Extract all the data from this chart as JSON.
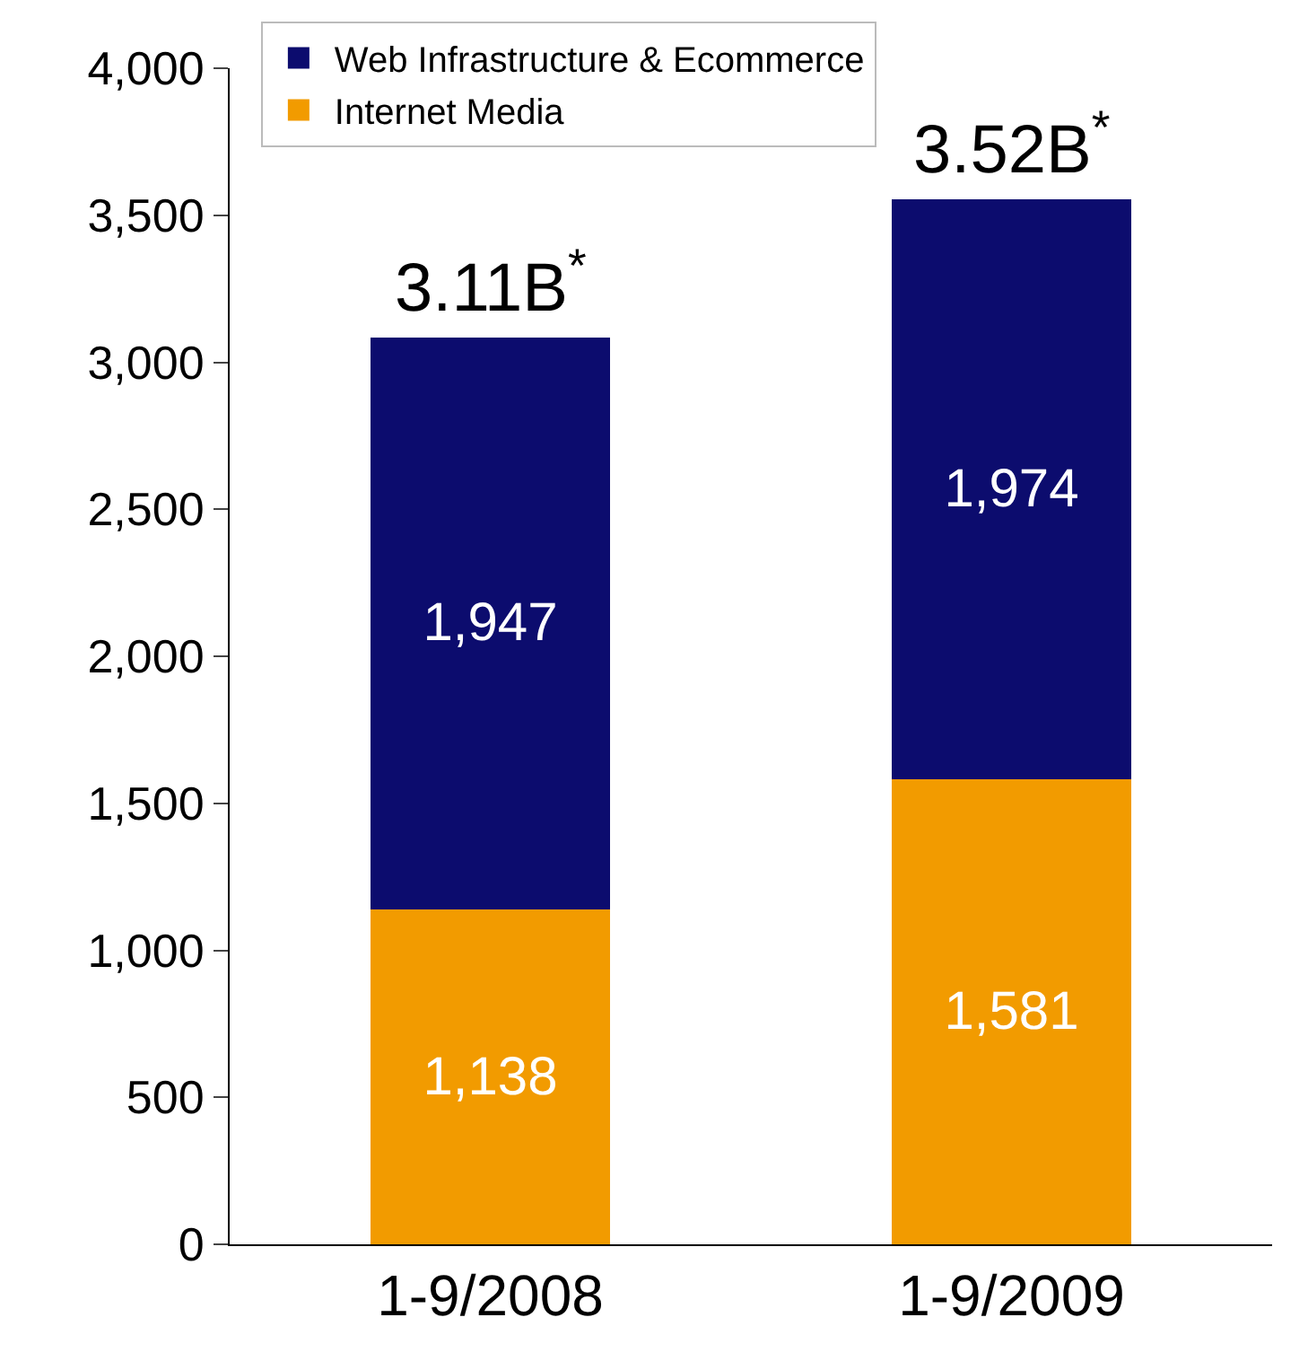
{
  "chart_data": {
    "type": "bar",
    "stacked": true,
    "categories": [
      "1-9/2008",
      "1-9/2009"
    ],
    "series": [
      {
        "name": "Internet Media",
        "color": "#f29b00",
        "values": [
          1138,
          1581
        ],
        "value_labels": [
          "1,138",
          "1,581"
        ]
      },
      {
        "name": "Web Infrastructure & Ecommerce",
        "color": "#0c0c6e",
        "values": [
          1947,
          1974
        ],
        "value_labels": [
          "1,947",
          "1,974"
        ]
      }
    ],
    "ylim": [
      0,
      4000
    ],
    "yticks": [
      {
        "value": 0,
        "label": "0"
      },
      {
        "value": 500,
        "label": "500"
      },
      {
        "value": 1000,
        "label": "1,000"
      },
      {
        "value": 1500,
        "label": "1,500"
      },
      {
        "value": 2000,
        "label": "2,000"
      },
      {
        "value": 2500,
        "label": "2,500"
      },
      {
        "value": 3000,
        "label": "3,000"
      },
      {
        "value": 3500,
        "label": "3,500"
      },
      {
        "value": 4000,
        "label": "4,000"
      }
    ],
    "annotations": [
      {
        "text": "3.11B$^{*}$",
        "x": "1-9/2008",
        "y": 3085
      },
      {
        "text": "3.52B$^{*}$",
        "x": "1-9/2009",
        "y": 3555
      }
    ],
    "grid": false,
    "legend": "top left"
  }
}
